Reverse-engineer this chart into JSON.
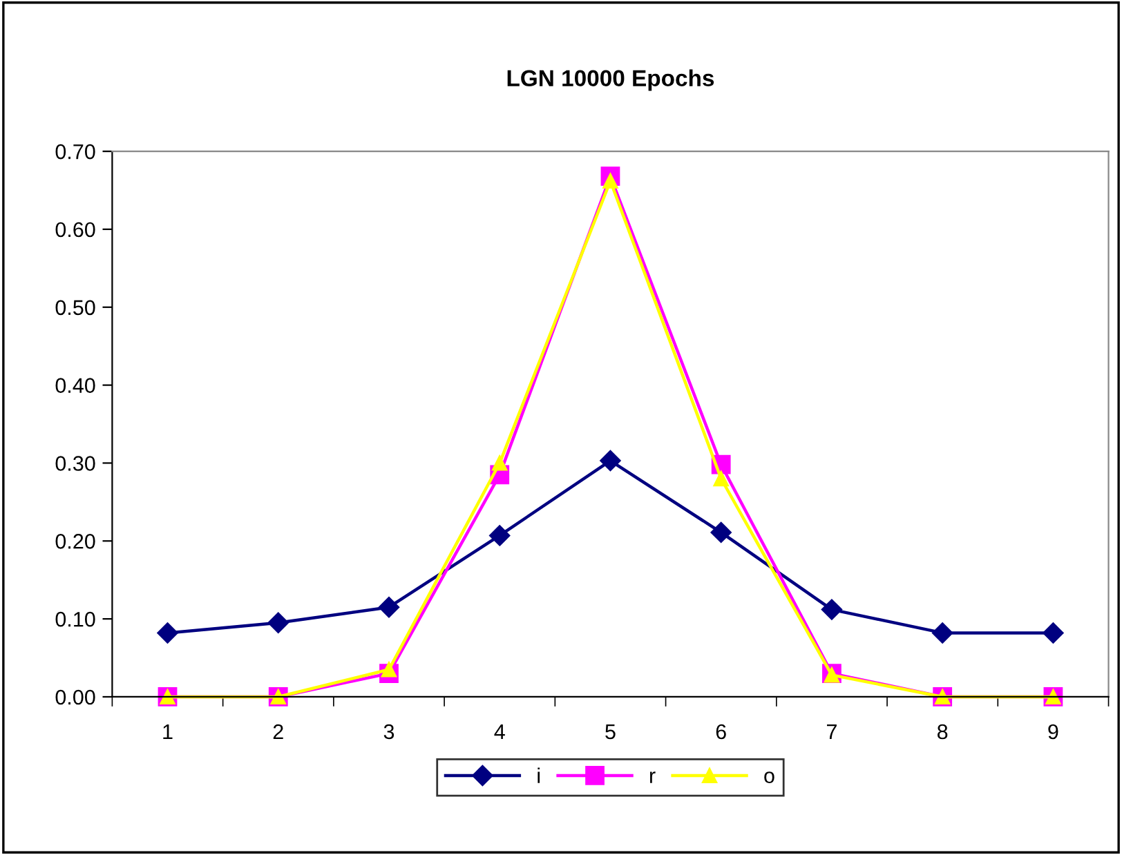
{
  "chart_data": {
    "type": "line",
    "title": "LGN 10000 Epochs",
    "categories": [
      "1",
      "2",
      "3",
      "4",
      "5",
      "6",
      "7",
      "8",
      "9"
    ],
    "series": [
      {
        "name": "i",
        "color": "#000080",
        "marker": "diamond",
        "values": [
          0.082,
          0.095,
          0.115,
          0.207,
          0.303,
          0.211,
          0.112,
          0.082,
          0.082
        ]
      },
      {
        "name": "r",
        "color": "#ff00ff",
        "marker": "square",
        "values": [
          0.0,
          0.0,
          0.03,
          0.285,
          0.668,
          0.298,
          0.03,
          0.0,
          0.0
        ]
      },
      {
        "name": "o",
        "color": "#ffff00",
        "marker": "triangle",
        "values": [
          0.0,
          0.0,
          0.035,
          0.3,
          0.662,
          0.28,
          0.028,
          0.0,
          0.0
        ]
      }
    ],
    "ylim": [
      0,
      0.7
    ],
    "yticks": [
      {
        "value": 0,
        "label": "0.00"
      },
      {
        "value": 0.1,
        "label": "0.10"
      },
      {
        "value": 0.2,
        "label": "0.20"
      },
      {
        "value": 0.3,
        "label": "0.30"
      },
      {
        "value": 0.4,
        "label": "0.40"
      },
      {
        "value": 0.5,
        "label": "0.50"
      },
      {
        "value": 0.6,
        "label": "0.60"
      },
      {
        "value": 0.7,
        "label": "0.70"
      }
    ],
    "grid": false,
    "legend": "bottom",
    "line_style": "solid"
  }
}
